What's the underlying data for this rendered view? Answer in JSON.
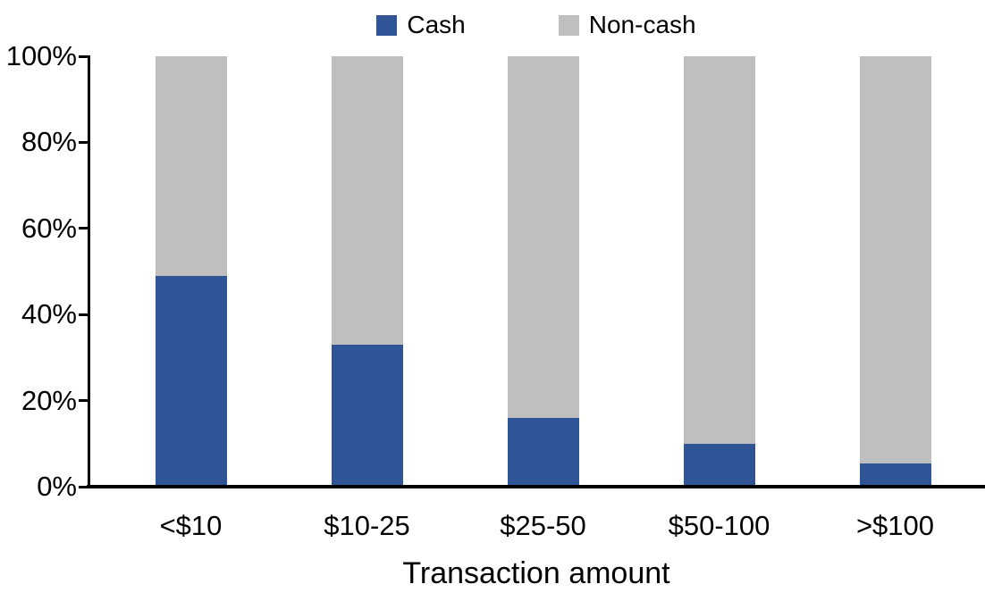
{
  "chart_data": {
    "type": "bar",
    "stacked": true,
    "percent_stacked": true,
    "title": "",
    "xlabel": "Transaction amount",
    "ylabel": "",
    "categories": [
      "<$10",
      "$10-25",
      "$25-50",
      "$50-100",
      ">$100"
    ],
    "series": [
      {
        "name": "Cash",
        "color": "#2F5597",
        "values": [
          49,
          33,
          16,
          10,
          5.5
        ]
      },
      {
        "name": "Non-cash",
        "color": "#BFBFBF",
        "values": [
          51,
          67,
          84,
          90,
          94.5
        ]
      }
    ],
    "y_axis": {
      "min": 0,
      "max": 100,
      "tick_step": 20,
      "tick_labels": [
        "0%",
        "20%",
        "40%",
        "60%",
        "80%",
        "100%"
      ]
    },
    "legend_position": "top",
    "grid": false
  },
  "colors": {
    "axis": "#000000",
    "background": "#FFFFFF",
    "cash": "#2F5597",
    "noncash": "#BFBFBF"
  }
}
